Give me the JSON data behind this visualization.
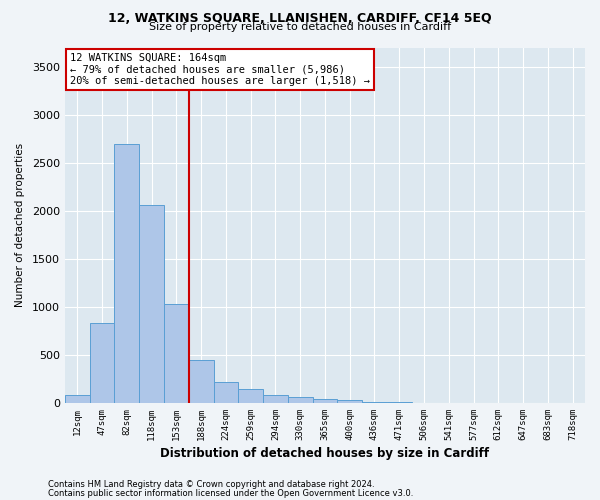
{
  "title1": "12, WATKINS SQUARE, LLANISHEN, CARDIFF, CF14 5EQ",
  "title2": "Size of property relative to detached houses in Cardiff",
  "xlabel": "Distribution of detached houses by size in Cardiff",
  "ylabel": "Number of detached properties",
  "bar_labels": [
    "12sqm",
    "47sqm",
    "82sqm",
    "118sqm",
    "153sqm",
    "188sqm",
    "224sqm",
    "259sqm",
    "294sqm",
    "330sqm",
    "365sqm",
    "400sqm",
    "436sqm",
    "471sqm",
    "506sqm",
    "541sqm",
    "577sqm",
    "612sqm",
    "647sqm",
    "683sqm",
    "718sqm"
  ],
  "bar_values": [
    80,
    830,
    2700,
    2060,
    1030,
    450,
    215,
    145,
    80,
    65,
    45,
    30,
    10,
    5,
    3,
    2,
    1,
    1,
    0,
    0,
    0
  ],
  "bar_color": "#aec6e8",
  "bar_edge_color": "#5a9fd4",
  "vline_color": "#cc0000",
  "annotation_text": "12 WATKINS SQUARE: 164sqm\n← 79% of detached houses are smaller (5,986)\n20% of semi-detached houses are larger (1,518) →",
  "annotation_box_color": "#ffffff",
  "annotation_box_edge": "#cc0000",
  "ylim": [
    0,
    3700
  ],
  "yticks": [
    0,
    500,
    1000,
    1500,
    2000,
    2500,
    3000,
    3500
  ],
  "footer1": "Contains HM Land Registry data © Crown copyright and database right 2024.",
  "footer2": "Contains public sector information licensed under the Open Government Licence v3.0.",
  "fig_bg": "#f0f4f8",
  "plot_bg": "#dde8f0"
}
